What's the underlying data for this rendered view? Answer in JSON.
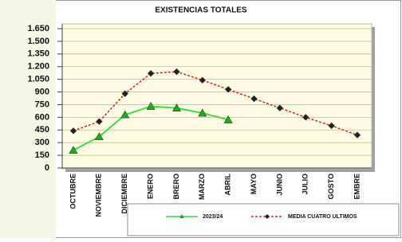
{
  "chart_data": {
    "type": "line",
    "title": "EXISTENCIAS TOTALES",
    "categories": [
      "OCTUBRE",
      "NOVIEMBRE",
      "DICIEMBRE",
      "ENERO",
      "BRERO",
      "MARZO",
      "ABRIL",
      "MAYO",
      "JUNIO",
      "JULIO",
      "GOSTO",
      "EMBRE"
    ],
    "series": [
      {
        "name": "2023/24",
        "color": "#33dd33",
        "values": [
          210,
          370,
          630,
          730,
          710,
          650,
          570,
          null,
          null,
          null,
          null,
          null
        ]
      },
      {
        "name": "MEDIA CUATRO ULTIMOS",
        "color": "#dd2222",
        "values": [
          440,
          550,
          880,
          1120,
          1140,
          1040,
          930,
          820,
          710,
          600,
          500,
          390
        ]
      }
    ],
    "ylim": [
      0,
      1650
    ],
    "yticks": [
      0,
      150,
      300,
      450,
      600,
      750,
      900,
      {
        "value": 1050,
        "label": "1.050"
      },
      {
        "value": 1200,
        "label": "1.200"
      },
      {
        "value": 1350,
        "label": "1.350"
      },
      {
        "value": 1500,
        "label": "1.500"
      },
      {
        "value": 1650,
        "label": "1.650"
      }
    ],
    "grid": true
  }
}
